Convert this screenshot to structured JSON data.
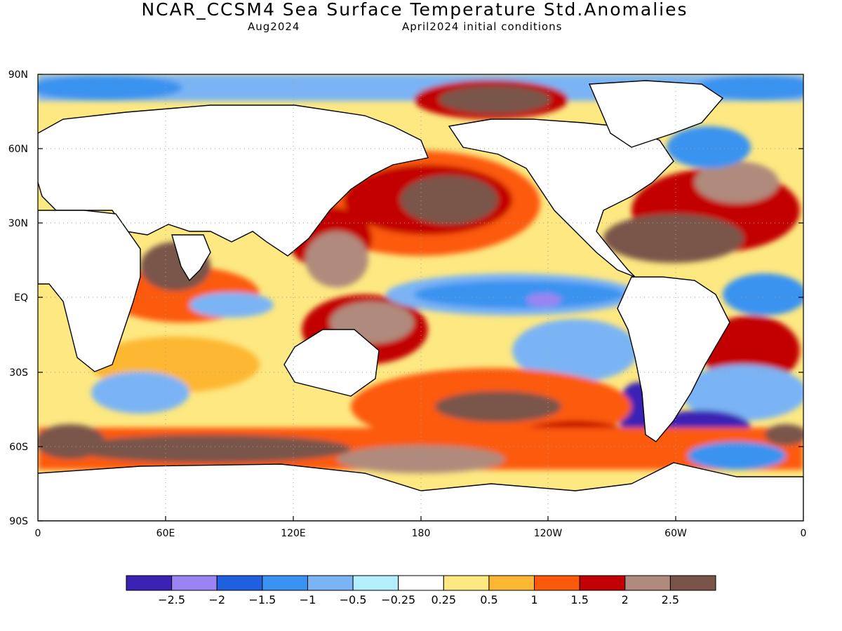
{
  "title": "NCAR_CCSM4 Sea Surface Temperature Std.Anomalies",
  "subtitle_left": "Aug2024",
  "subtitle_right": "April2024 initial conditions",
  "lat_labels": [
    "90N",
    "60N",
    "30N",
    "EQ",
    "30S",
    "60S",
    "90S"
  ],
  "lon_labels": [
    "0",
    "60E",
    "120E",
    "180",
    "120W",
    "60W",
    "0"
  ],
  "colorbar": {
    "colors": [
      "#3b22b4",
      "#9a84f3",
      "#1f60e0",
      "#3a93f0",
      "#7ab4f5",
      "#b2eefb",
      "#ffffff",
      "#fde882",
      "#fdb733",
      "#fc5a0a",
      "#c20104",
      "#b08a7c",
      "#7a5448"
    ],
    "labels": [
      "-2.5",
      "-2",
      "-1.5",
      "-1",
      "-0.5",
      "-0.25",
      "0.25",
      "0.5",
      "1",
      "1.5",
      "2",
      "2.5"
    ]
  }
}
